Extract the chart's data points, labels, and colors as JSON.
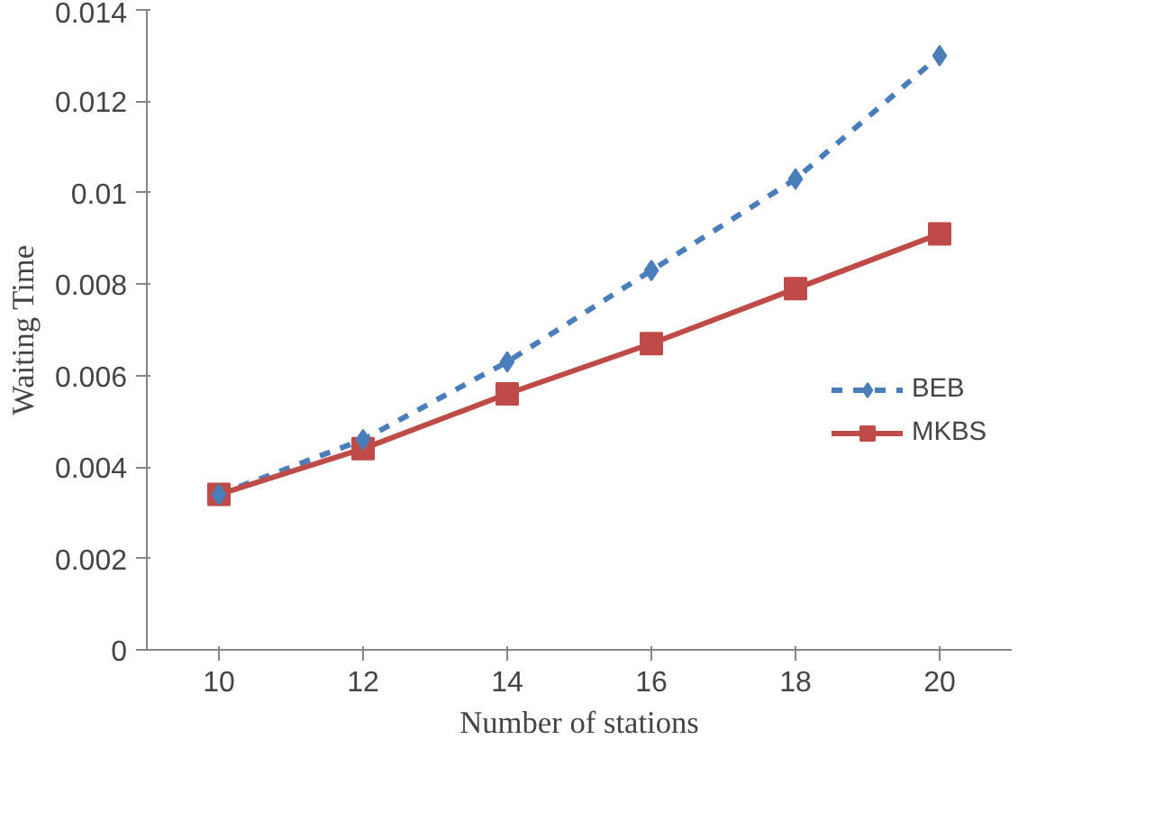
{
  "chart_data": {
    "type": "line",
    "xlabel": "Number of stations",
    "ylabel": "Waiting Time",
    "categories": [
      "10",
      "12",
      "14",
      "16",
      "18",
      "20"
    ],
    "series": [
      {
        "name": "BEB",
        "color": "#4a7ebb",
        "values": [
          0.0034,
          0.0046,
          0.0063,
          0.0083,
          0.0103,
          0.013
        ],
        "marker": "diamond",
        "line_style": "dashed"
      },
      {
        "name": "MKBS",
        "color": "#be4b48",
        "values": [
          0.0034,
          0.0044,
          0.0056,
          0.0067,
          0.0079,
          0.0091
        ],
        "marker": "square",
        "line_style": "solid"
      }
    ],
    "ylim": [
      0,
      0.014
    ],
    "yticks": [
      0,
      0.002,
      0.004,
      0.006,
      0.008,
      0.01,
      0.012,
      0.014
    ],
    "grid": false,
    "legend": "right"
  }
}
